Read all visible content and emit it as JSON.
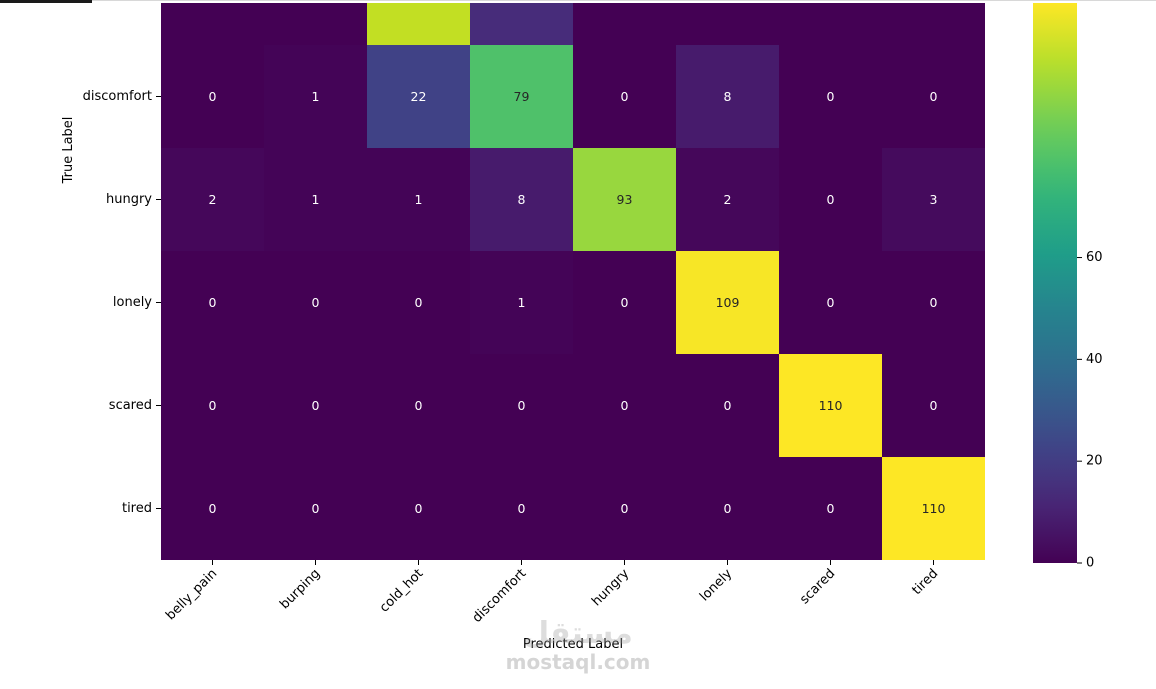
{
  "chart_data": {
    "type": "heatmap",
    "xlabel": "Predicted Label",
    "ylabel": "True Label",
    "x_categories": [
      "belly_pain",
      "burping",
      "cold_hot",
      "discomfort",
      "hungry",
      "lonely",
      "scared",
      "tired"
    ],
    "y_categories_visible": [
      "discomfort",
      "hungry",
      "lonely",
      "scared",
      "tired"
    ],
    "partial_top_row_colors": [
      "#440154",
      "#440154",
      "#c2df23",
      "#472c7a",
      "#440154",
      "#440154",
      "#440154",
      "#440154"
    ],
    "matrix": [
      [
        0,
        1,
        22,
        79,
        0,
        8,
        0,
        0
      ],
      [
        2,
        1,
        1,
        8,
        93,
        2,
        0,
        3
      ],
      [
        0,
        0,
        0,
        1,
        0,
        109,
        0,
        0
      ],
      [
        0,
        0,
        0,
        0,
        0,
        0,
        110,
        0
      ],
      [
        0,
        0,
        0,
        0,
        0,
        0,
        0,
        110
      ]
    ],
    "colormap": "viridis",
    "colorbar": {
      "min": 0,
      "max": 110,
      "ticks": [
        0,
        20,
        40,
        60
      ]
    }
  },
  "watermark": {
    "arabic": "مستقل",
    "latin": "mostaql.com"
  }
}
